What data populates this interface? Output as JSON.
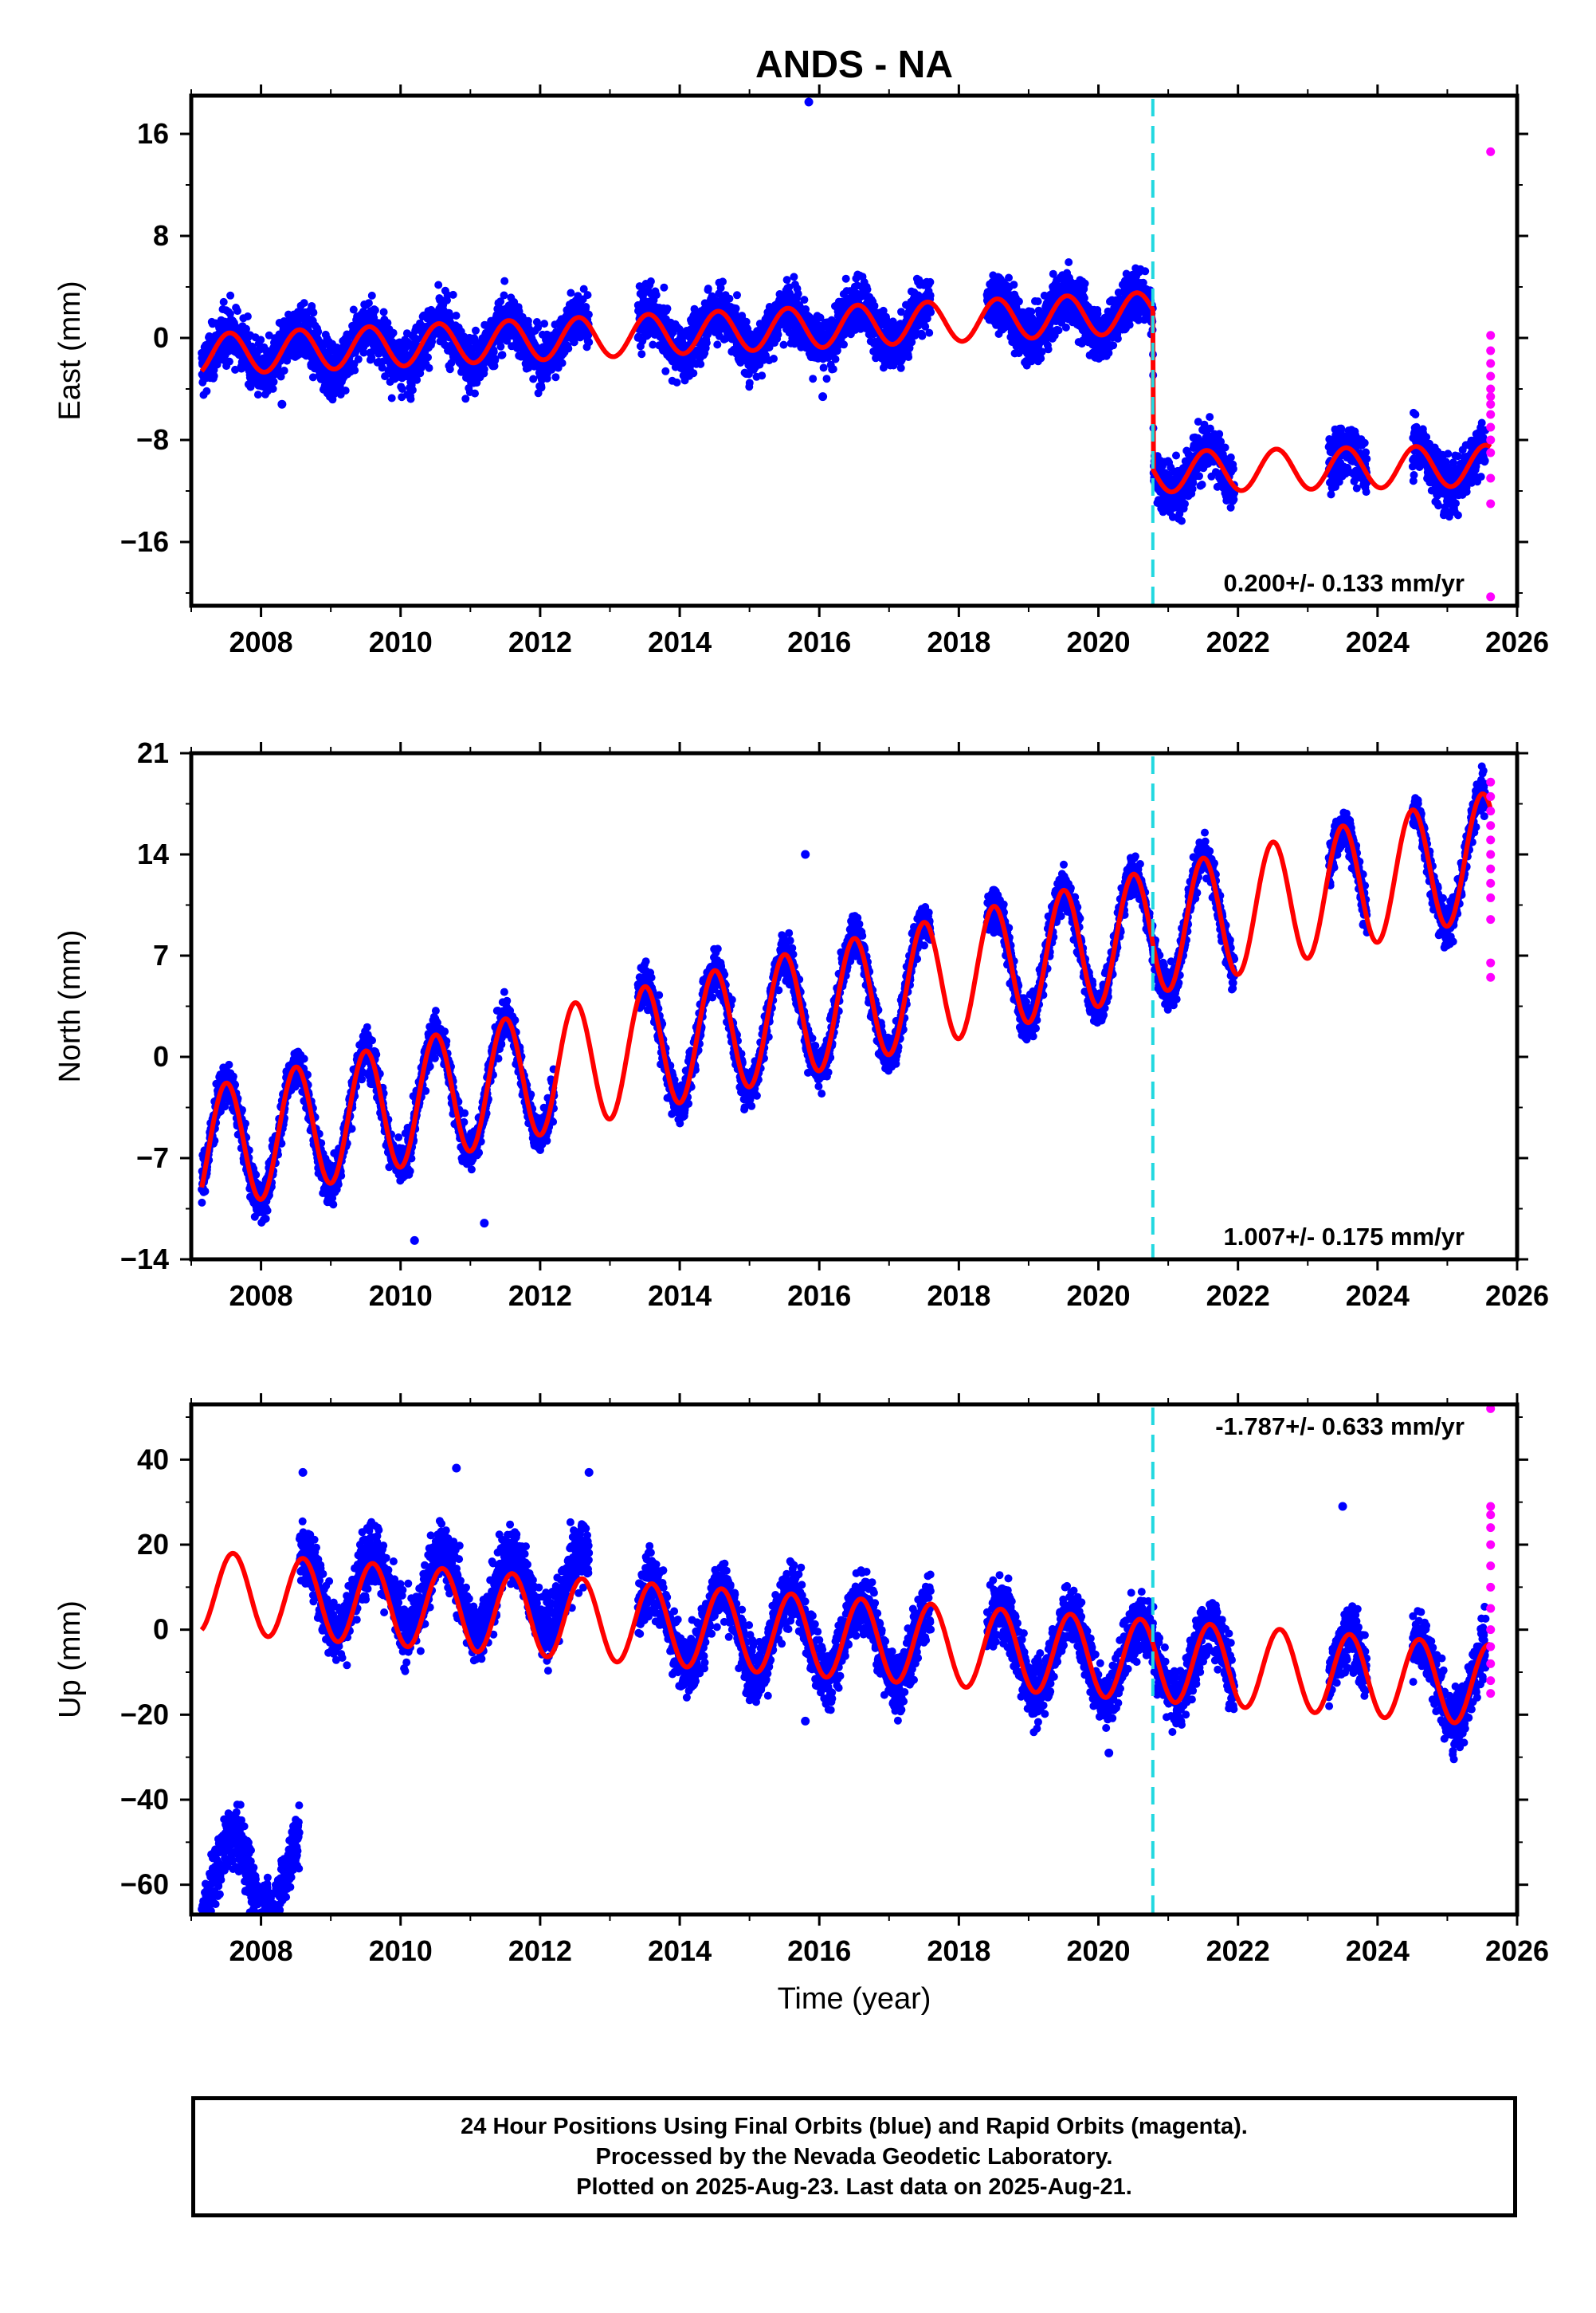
{
  "title": "ANDS - NA",
  "xlabel": "Time (year)",
  "colors": {
    "final_orbits": "#0000ff",
    "rapid_orbits": "#ff00ff",
    "model": "#ff0000",
    "event_line": "#22d8e0"
  },
  "caption": [
    "24 Hour Positions Using Final Orbits (blue) and Rapid Orbits (magenta).",
    "Processed by the Nevada Geodetic Laboratory.",
    "Plotted on 2025-Aug-23. Last data on 2025-Aug-21."
  ],
  "chart_data": [
    {
      "type": "scatter",
      "ylabel": "East (mm)",
      "velocity": "0.200+/- 0.133 mm/yr",
      "velocity_pos": "bottom-right",
      "xlim": [
        2007.0,
        2026.0
      ],
      "ylim": [
        -21,
        19
      ],
      "xticks": [
        2008,
        2010,
        2012,
        2014,
        2016,
        2018,
        2020,
        2022,
        2024,
        2026
      ],
      "yticks": [
        -16,
        -8,
        0,
        8,
        16
      ],
      "event_line_x": 2020.78,
      "data_span": [
        2007.15,
        2025.62
      ],
      "final_orbits_range": [
        2007.15,
        2025.55
      ],
      "gaps": [
        [
          2012.7,
          2013.4
        ],
        [
          2017.6,
          2018.4
        ],
        [
          2021.95,
          2023.3
        ],
        [
          2023.85,
          2024.5
        ]
      ],
      "step": {
        "x": 2020.78,
        "before": 2.0,
        "after": -10.5
      },
      "trend": [
        [
          2007.15,
          -1.3
        ],
        [
          2020.78,
          2.0
        ],
        [
          2020.79,
          -10.5
        ],
        [
          2025.6,
          -10.0
        ]
      ],
      "seasonal_amplitude": 1.6,
      "seasonal_phase": 0.55,
      "scatter_noise": 1.5,
      "outliers": [
        [
          2015.85,
          18.5
        ],
        [
          2008.3,
          -5.2
        ],
        [
          2016.05,
          -4.6
        ]
      ],
      "rapid_orbits_points": [
        14.6,
        0.2,
        -1.0,
        -2.0,
        -3.0,
        -4.0,
        -4.6,
        -5.2,
        -6.0,
        -7.0,
        -8.0,
        -9.0,
        -11.0,
        -13.0,
        -20.3
      ],
      "rapid_x": 2025.62
    },
    {
      "type": "scatter",
      "ylabel": "North (mm)",
      "velocity": "1.007+/- 0.175 mm/yr",
      "velocity_pos": "bottom-right",
      "xlim": [
        2007.0,
        2026.0
      ],
      "ylim": [
        -14,
        21
      ],
      "xticks": [
        2008,
        2010,
        2012,
        2014,
        2016,
        2018,
        2020,
        2022,
        2024,
        2026
      ],
      "yticks": [
        -14,
        -7,
        0,
        7,
        14,
        21
      ],
      "event_line_x": 2020.78,
      "data_span": [
        2007.15,
        2025.62
      ],
      "final_orbits_range": [
        2007.15,
        2025.55
      ],
      "gaps": [
        [
          2012.2,
          2013.4
        ],
        [
          2017.6,
          2018.4
        ],
        [
          2021.95,
          2023.3
        ],
        [
          2023.85,
          2024.5
        ]
      ],
      "trend": [
        [
          2007.15,
          -6.5
        ],
        [
          2025.6,
          14.0
        ]
      ],
      "seasonal_amplitude": 4.3,
      "seasonal_phase": 0.5,
      "scatter_noise": 1.0,
      "outliers": [
        [
          2015.8,
          14.0
        ],
        [
          2010.2,
          -12.7
        ],
        [
          2011.2,
          -11.5
        ]
      ],
      "rapid_orbits_points": [
        19.0,
        18.0,
        17.0,
        16.0,
        15.0,
        14.0,
        13.0,
        12.0,
        11.0,
        9.5,
        6.5,
        5.5
      ],
      "rapid_x": 2025.62
    },
    {
      "type": "scatter",
      "ylabel": "Up (mm)",
      "velocity": "-1.787+/- 0.633 mm/yr",
      "velocity_pos": "top-right",
      "xlim": [
        2007.0,
        2026.0
      ],
      "ylim": [
        -67,
        53
      ],
      "xticks": [
        2008,
        2010,
        2012,
        2014,
        2016,
        2018,
        2020,
        2022,
        2024,
        2026
      ],
      "yticks": [
        -60,
        -40,
        -20,
        0,
        20,
        40
      ],
      "event_line_x": 2020.78,
      "data_span": [
        2007.15,
        2025.62
      ],
      "final_orbits_range": [
        2007.15,
        2025.55
      ],
      "gaps": [
        [
          2012.7,
          2013.4
        ],
        [
          2017.6,
          2018.4
        ],
        [
          2021.95,
          2023.3
        ],
        [
          2023.85,
          2024.5
        ]
      ],
      "trend": [
        [
          2007.15,
          9.0
        ],
        [
          2025.6,
          -13.0
        ]
      ],
      "seasonal_amplitude": 9.5,
      "seasonal_phase": 0.6,
      "scatter_noise": 5.0,
      "offset_segments": [
        {
          "from": 2007.15,
          "to": 2008.55,
          "offset": -58
        },
        {
          "from": 2008.55,
          "to": 2012.7,
          "offset": 9
        }
      ],
      "outliers": [
        [
          2010.8,
          38.0
        ],
        [
          2008.6,
          37.0
        ],
        [
          2015.8,
          -21.5
        ],
        [
          2020.15,
          -29.0
        ],
        [
          2023.5,
          29.0
        ],
        [
          2012.7,
          37.0
        ]
      ],
      "rapid_orbits_points": [
        52.0,
        29.0,
        27.0,
        24.0,
        20.0,
        15.0,
        10.0,
        5.0,
        0.0,
        -4.0,
        -8.0,
        -12.0,
        -15.0
      ],
      "rapid_x": 2025.62
    }
  ]
}
